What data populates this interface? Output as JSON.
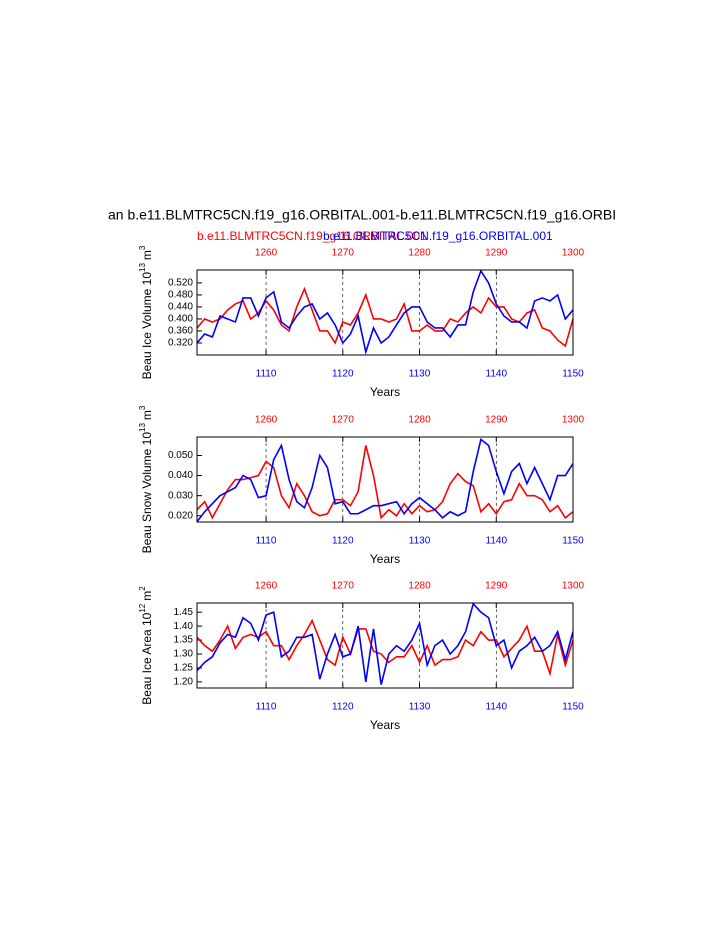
{
  "title": "an b.e11.BLMTRC5CN.f19_g16.ORBITAL.001-b.e11.BLMTRC5CN.f19_g16.ORBI",
  "subtitles": [
    {
      "text": "b.e11.BLMTRC5CN.f19_g16.ORBITAL.001",
      "color": "#ff0000"
    },
    {
      "text": "b.e11.BLMTRC5CN.f19_g16.ORBITAL.001",
      "color": "#0000ff"
    }
  ],
  "chart_data": [
    {
      "type": "line",
      "xlabel": "Years",
      "ylabel": {
        "text": "Beau Ice Volume 10",
        "exponent": "13",
        "unit": "m",
        "unit_exponent": "3"
      },
      "x": [
        1101,
        1102,
        1103,
        1104,
        1105,
        1106,
        1107,
        1108,
        1109,
        1110,
        1111,
        1112,
        1113,
        1114,
        1115,
        1116,
        1117,
        1118,
        1119,
        1120,
        1121,
        1122,
        1123,
        1124,
        1125,
        1126,
        1127,
        1128,
        1129,
        1130,
        1131,
        1132,
        1133,
        1134,
        1135,
        1136,
        1137,
        1138,
        1139,
        1140,
        1141,
        1142,
        1143,
        1144,
        1145,
        1146,
        1147,
        1148,
        1149,
        1150
      ],
      "x2": [
        1251,
        1252,
        1253,
        1254,
        1255,
        1256,
        1257,
        1258,
        1259,
        1260,
        1261,
        1262,
        1263,
        1264,
        1265,
        1266,
        1267,
        1268,
        1269,
        1270,
        1271,
        1272,
        1273,
        1274,
        1275,
        1276,
        1277,
        1278,
        1279,
        1280,
        1281,
        1282,
        1283,
        1284,
        1285,
        1286,
        1287,
        1288,
        1289,
        1290,
        1291,
        1292,
        1293,
        1294,
        1295,
        1296,
        1297,
        1298,
        1299,
        1300
      ],
      "xlim": [
        1101,
        1150
      ],
      "xticks": [
        1110,
        1120,
        1130,
        1140,
        1150
      ],
      "xtick_color": "#0000ff",
      "x2lim": [
        1251,
        1300
      ],
      "x2ticks": [
        1260,
        1270,
        1280,
        1290,
        1300
      ],
      "x2tick_color": "#ff0000",
      "ylim": [
        0.28,
        0.563
      ],
      "yticks": [
        {
          "value": 0.32,
          "label": "0.320"
        },
        {
          "value": 0.36,
          "label": "0.360"
        },
        {
          "value": 0.4,
          "label": "0.400"
        },
        {
          "value": 0.44,
          "label": "0.440"
        },
        {
          "value": 0.48,
          "label": "0.480"
        },
        {
          "value": 0.52,
          "label": "0.520"
        }
      ],
      "grid": true,
      "series": [
        {
          "color": "#ff0000",
          "xaxis": "x2",
          "values": [
            0.37,
            0.4,
            0.39,
            0.4,
            0.43,
            0.45,
            0.46,
            0.4,
            0.42,
            0.46,
            0.43,
            0.38,
            0.36,
            0.44,
            0.5,
            0.43,
            0.36,
            0.36,
            0.32,
            0.39,
            0.38,
            0.42,
            0.48,
            0.4,
            0.4,
            0.39,
            0.4,
            0.45,
            0.36,
            0.36,
            0.38,
            0.36,
            0.36,
            0.4,
            0.39,
            0.42,
            0.44,
            0.42,
            0.47,
            0.44,
            0.44,
            0.4,
            0.39,
            0.42,
            0.43,
            0.37,
            0.36,
            0.33,
            0.31,
            0.4
          ]
        },
        {
          "color": "#0000ff",
          "xaxis": "x",
          "values": [
            0.32,
            0.35,
            0.34,
            0.41,
            0.4,
            0.39,
            0.47,
            0.47,
            0.41,
            0.47,
            0.49,
            0.39,
            0.37,
            0.41,
            0.44,
            0.45,
            0.4,
            0.42,
            0.38,
            0.32,
            0.35,
            0.41,
            0.29,
            0.37,
            0.32,
            0.34,
            0.38,
            0.42,
            0.44,
            0.44,
            0.39,
            0.37,
            0.37,
            0.34,
            0.38,
            0.38,
            0.49,
            0.56,
            0.52,
            0.45,
            0.41,
            0.39,
            0.39,
            0.37,
            0.46,
            0.47,
            0.46,
            0.48,
            0.4,
            0.43
          ]
        }
      ]
    },
    {
      "type": "line",
      "xlabel": "Years",
      "ylabel": {
        "text": "Beau Snow Volume 10",
        "exponent": "13",
        "unit": "m",
        "unit_exponent": "3"
      },
      "x": [
        1101,
        1102,
        1103,
        1104,
        1105,
        1106,
        1107,
        1108,
        1109,
        1110,
        1111,
        1112,
        1113,
        1114,
        1115,
        1116,
        1117,
        1118,
        1119,
        1120,
        1121,
        1122,
        1123,
        1124,
        1125,
        1126,
        1127,
        1128,
        1129,
        1130,
        1131,
        1132,
        1133,
        1134,
        1135,
        1136,
        1137,
        1138,
        1139,
        1140,
        1141,
        1142,
        1143,
        1144,
        1145,
        1146,
        1147,
        1148,
        1149,
        1150
      ],
      "x2": [
        1251,
        1252,
        1253,
        1254,
        1255,
        1256,
        1257,
        1258,
        1259,
        1260,
        1261,
        1262,
        1263,
        1264,
        1265,
        1266,
        1267,
        1268,
        1269,
        1270,
        1271,
        1272,
        1273,
        1274,
        1275,
        1276,
        1277,
        1278,
        1279,
        1280,
        1281,
        1282,
        1283,
        1284,
        1285,
        1286,
        1287,
        1288,
        1289,
        1290,
        1291,
        1292,
        1293,
        1294,
        1295,
        1296,
        1297,
        1298,
        1299,
        1300
      ],
      "xlim": [
        1101,
        1150
      ],
      "xticks": [
        1110,
        1120,
        1130,
        1140,
        1150
      ],
      "xtick_color": "#0000ff",
      "x2lim": [
        1251,
        1300
      ],
      "x2ticks": [
        1260,
        1270,
        1280,
        1290,
        1300
      ],
      "x2tick_color": "#ff0000",
      "ylim": [
        0.0169,
        0.0592
      ],
      "yticks": [
        {
          "value": 0.02,
          "label": "0.020"
        },
        {
          "value": 0.03,
          "label": "0.030"
        },
        {
          "value": 0.04,
          "label": "0.040"
        },
        {
          "value": 0.05,
          "label": "0.050"
        }
      ],
      "grid": true,
      "series": [
        {
          "color": "#ff0000",
          "xaxis": "x2",
          "values": [
            0.023,
            0.027,
            0.019,
            0.026,
            0.033,
            0.038,
            0.038,
            0.039,
            0.04,
            0.047,
            0.044,
            0.03,
            0.024,
            0.036,
            0.03,
            0.022,
            0.02,
            0.021,
            0.028,
            0.028,
            0.025,
            0.032,
            0.055,
            0.04,
            0.019,
            0.023,
            0.02,
            0.026,
            0.021,
            0.025,
            0.022,
            0.023,
            0.027,
            0.036,
            0.041,
            0.037,
            0.035,
            0.022,
            0.026,
            0.021,
            0.027,
            0.028,
            0.036,
            0.03,
            0.03,
            0.028,
            0.022,
            0.025,
            0.019,
            0.022
          ]
        },
        {
          "color": "#0000ff",
          "xaxis": "x",
          "values": [
            0.017,
            0.022,
            0.026,
            0.03,
            0.032,
            0.034,
            0.04,
            0.038,
            0.029,
            0.03,
            0.048,
            0.055,
            0.038,
            0.027,
            0.024,
            0.034,
            0.05,
            0.044,
            0.026,
            0.027,
            0.021,
            0.021,
            0.023,
            0.025,
            0.025,
            0.026,
            0.027,
            0.021,
            0.026,
            0.029,
            0.026,
            0.023,
            0.019,
            0.022,
            0.02,
            0.022,
            0.042,
            0.058,
            0.055,
            0.042,
            0.031,
            0.042,
            0.046,
            0.036,
            0.044,
            0.036,
            0.028,
            0.04,
            0.04,
            0.046
          ]
        }
      ]
    },
    {
      "type": "line",
      "xlabel": "Years",
      "ylabel": {
        "text": "Beau Ice Area 10",
        "exponent": "12",
        "unit": "m",
        "unit_exponent": "2"
      },
      "x": [
        1101,
        1102,
        1103,
        1104,
        1105,
        1106,
        1107,
        1108,
        1109,
        1110,
        1111,
        1112,
        1113,
        1114,
        1115,
        1116,
        1117,
        1118,
        1119,
        1120,
        1121,
        1122,
        1123,
        1124,
        1125,
        1126,
        1127,
        1128,
        1129,
        1130,
        1131,
        1132,
        1133,
        1134,
        1135,
        1136,
        1137,
        1138,
        1139,
        1140,
        1141,
        1142,
        1143,
        1144,
        1145,
        1146,
        1147,
        1148,
        1149,
        1150
      ],
      "x2": [
        1251,
        1252,
        1253,
        1254,
        1255,
        1256,
        1257,
        1258,
        1259,
        1260,
        1261,
        1262,
        1263,
        1264,
        1265,
        1266,
        1267,
        1268,
        1269,
        1270,
        1271,
        1272,
        1273,
        1274,
        1275,
        1276,
        1277,
        1278,
        1279,
        1280,
        1281,
        1282,
        1283,
        1284,
        1285,
        1286,
        1287,
        1288,
        1289,
        1290,
        1291,
        1292,
        1293,
        1294,
        1295,
        1296,
        1297,
        1298,
        1299,
        1300
      ],
      "xlim": [
        1101,
        1150
      ],
      "xticks": [
        1110,
        1120,
        1130,
        1140,
        1150
      ],
      "xtick_color": "#0000ff",
      "x2lim": [
        1251,
        1300
      ],
      "x2ticks": [
        1260,
        1270,
        1280,
        1290,
        1300
      ],
      "x2tick_color": "#ff0000",
      "ylim": [
        1.178,
        1.483
      ],
      "yticks": [
        {
          "value": 1.2,
          "label": "1.20"
        },
        1.25,
        {
          "value": 1.3,
          "label": "1.30"
        },
        1.35,
        {
          "value": 1.4,
          "label": "1.40"
        },
        1.45
      ],
      "grid": true,
      "series": [
        {
          "color": "#ff0000",
          "xaxis": "x2",
          "values": [
            1.36,
            1.33,
            1.31,
            1.35,
            1.4,
            1.32,
            1.36,
            1.37,
            1.36,
            1.38,
            1.33,
            1.33,
            1.28,
            1.33,
            1.37,
            1.42,
            1.35,
            1.28,
            1.26,
            1.36,
            1.3,
            1.39,
            1.39,
            1.31,
            1.3,
            1.27,
            1.29,
            1.29,
            1.33,
            1.27,
            1.33,
            1.26,
            1.28,
            1.28,
            1.29,
            1.35,
            1.33,
            1.38,
            1.35,
            1.35,
            1.29,
            1.32,
            1.35,
            1.4,
            1.31,
            1.31,
            1.23,
            1.37,
            1.26,
            1.35
          ]
        },
        {
          "color": "#0000ff",
          "xaxis": "x",
          "values": [
            1.24,
            1.27,
            1.29,
            1.34,
            1.37,
            1.36,
            1.43,
            1.41,
            1.35,
            1.44,
            1.45,
            1.29,
            1.31,
            1.36,
            1.36,
            1.37,
            1.21,
            1.3,
            1.37,
            1.29,
            1.3,
            1.4,
            1.2,
            1.39,
            1.19,
            1.3,
            1.33,
            1.31,
            1.35,
            1.41,
            1.26,
            1.33,
            1.35,
            1.3,
            1.33,
            1.38,
            1.48,
            1.45,
            1.43,
            1.33,
            1.35,
            1.25,
            1.31,
            1.33,
            1.36,
            1.31,
            1.33,
            1.38,
            1.28,
            1.38
          ]
        }
      ]
    }
  ]
}
